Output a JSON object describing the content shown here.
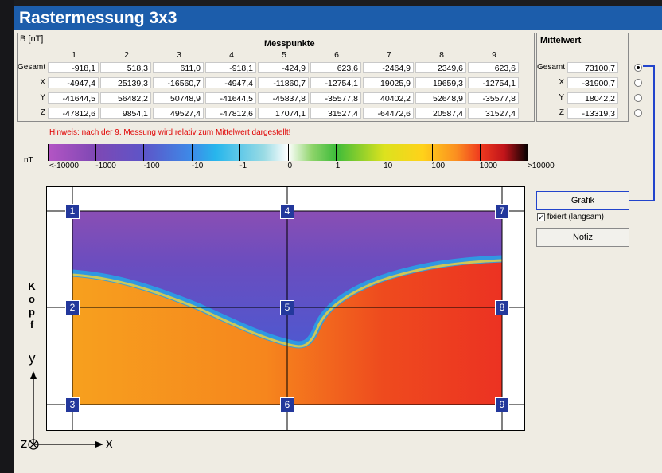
{
  "window": {
    "title": "Rastermessung 3x3"
  },
  "messpunkte": {
    "unit_label": "B [nT]",
    "header": "Messpunkte",
    "columns": [
      "1",
      "2",
      "3",
      "4",
      "5",
      "6",
      "7",
      "8",
      "9"
    ],
    "rows": [
      {
        "label": "Gesamt",
        "values": [
          "-918,1",
          "518,3",
          "611,0",
          "-918,1",
          "-424,9",
          "623,6",
          "-2464,9",
          "2349,6",
          "623,6"
        ]
      },
      {
        "label": "X",
        "values": [
          "-4947,4",
          "25139,3",
          "-16560,7",
          "-4947,4",
          "-11860,7",
          "-12754,1",
          "19025,9",
          "19659,3",
          "-12754,1"
        ]
      },
      {
        "label": "Y",
        "values": [
          "-41644,5",
          "56482,2",
          "50748,9",
          "-41644,5",
          "-45837,8",
          "-35577,8",
          "40402,2",
          "52648,9",
          "-35577,8"
        ]
      },
      {
        "label": "Z",
        "values": [
          "-47812,6",
          "9854,1",
          "49527,4",
          "-47812,6",
          "17074,1",
          "31527,4",
          "-64472,6",
          "20587,4",
          "31527,4"
        ]
      }
    ]
  },
  "mittelwert": {
    "header": "Mittelwert",
    "rows": [
      {
        "label": "Gesamt",
        "value": "73100,7"
      },
      {
        "label": "X",
        "value": "-31900,7"
      },
      {
        "label": "Y",
        "value": "18042,2"
      },
      {
        "label": "Z",
        "value": "-13319,3"
      }
    ],
    "selected_index": 0
  },
  "hinweis": "Hinweis: nach der 9. Messung wird relativ zum Mittelwert dargestellt!",
  "legend": {
    "unit": "nT",
    "ticks": [
      "<-10000",
      "-1000",
      "-100",
      "-10",
      "-1",
      "0",
      "1",
      "10",
      "100",
      "1000",
      ">10000"
    ]
  },
  "buttons": {
    "grafik": "Grafik",
    "notiz": "Notiz",
    "fixiert_label": "fixiert (langsam)",
    "fixiert_checked": true
  },
  "plot": {
    "markers": [
      "1",
      "2",
      "3",
      "4",
      "5",
      "6",
      "7",
      "8",
      "9"
    ],
    "side_label": [
      "K",
      "o",
      "p",
      "f"
    ]
  },
  "axes": {
    "y": "y",
    "x": "x",
    "z": "z"
  },
  "colors": {
    "title_bar": "#1c5dab",
    "marker": "#23389c",
    "hint": "#e00000",
    "connector": "#2244cc"
  }
}
